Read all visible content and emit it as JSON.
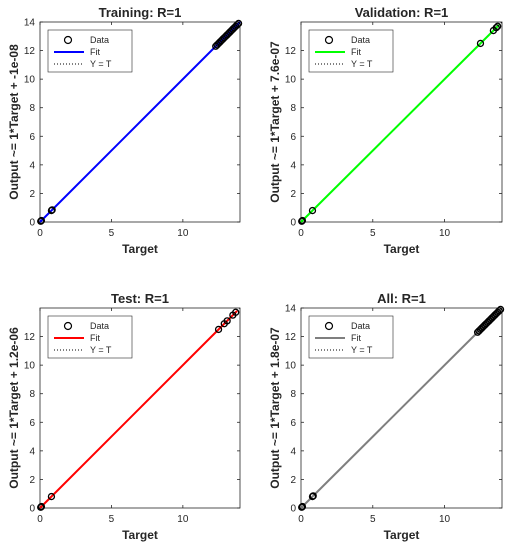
{
  "chart_data": [
    {
      "type": "scatter",
      "title": "Training: R=1",
      "xlabel": "Target",
      "ylabel": "Output ~= 1*Target + -1e-08",
      "xlim": [
        0,
        14
      ],
      "ylim": [
        0,
        14
      ],
      "xticks": [
        0,
        5,
        10
      ],
      "yticks": [
        0,
        2,
        4,
        6,
        8,
        10,
        12,
        14
      ],
      "fit_color": "#0000FF",
      "marker_color": "#000000",
      "fit": {
        "x": [
          0,
          14
        ],
        "y": [
          0,
          14
        ]
      },
      "identity": {
        "x": [
          0,
          14
        ],
        "y": [
          0,
          14
        ]
      },
      "data": {
        "x": [
          0.05,
          0.1,
          0.8,
          0.85,
          12.3,
          12.4,
          12.5,
          12.6,
          12.7,
          12.8,
          12.9,
          13.0,
          13.1,
          13.2,
          13.3,
          13.4,
          13.5,
          13.6,
          13.7,
          13.8,
          13.9
        ],
        "y": [
          0.05,
          0.1,
          0.8,
          0.85,
          12.3,
          12.4,
          12.5,
          12.6,
          12.7,
          12.8,
          12.9,
          13.0,
          13.1,
          13.2,
          13.3,
          13.4,
          13.5,
          13.6,
          13.7,
          13.8,
          13.9
        ]
      },
      "legend": {
        "position": "top-left",
        "entries": [
          "Data",
          "Fit",
          "Y = T"
        ]
      }
    },
    {
      "type": "scatter",
      "title": "Validation: R=1",
      "xlabel": "Target",
      "ylabel": "Output ~= 1*Target + 7.6e-07",
      "xlim": [
        0,
        14
      ],
      "ylim": [
        0,
        14
      ],
      "xticks": [
        0,
        5,
        10
      ],
      "yticks": [
        0,
        2,
        4,
        6,
        8,
        10,
        12
      ],
      "fit_color": "#00FF00",
      "marker_color": "#000000",
      "fit": {
        "x": [
          0,
          13.8
        ],
        "y": [
          0,
          13.8
        ]
      },
      "identity": {
        "x": [
          0,
          14
        ],
        "y": [
          0,
          14
        ]
      },
      "data": {
        "x": [
          0.05,
          0.1,
          0.8,
          12.5,
          13.4,
          13.6,
          13.7
        ],
        "y": [
          0.05,
          0.1,
          0.8,
          12.5,
          13.4,
          13.6,
          13.7
        ]
      },
      "legend": {
        "position": "top-left",
        "entries": [
          "Data",
          "Fit",
          "Y = T"
        ]
      }
    },
    {
      "type": "scatter",
      "title": "Test: R=1",
      "xlabel": "Target",
      "ylabel": "Output ~= 1*Target + 1.2e-06",
      "xlim": [
        0,
        14
      ],
      "ylim": [
        0,
        14
      ],
      "xticks": [
        0,
        5,
        10
      ],
      "yticks": [
        0,
        2,
        4,
        6,
        8,
        10,
        12
      ],
      "fit_color": "#FF0000",
      "marker_color": "#000000",
      "fit": {
        "x": [
          0,
          13.8
        ],
        "y": [
          0,
          13.8
        ]
      },
      "identity": {
        "x": [
          0,
          14
        ],
        "y": [
          0,
          14
        ]
      },
      "data": {
        "x": [
          0.05,
          0.1,
          0.8,
          12.5,
          12.9,
          13.1,
          13.5,
          13.7
        ],
        "y": [
          0.05,
          0.1,
          0.8,
          12.5,
          12.9,
          13.1,
          13.5,
          13.7
        ]
      },
      "legend": {
        "position": "top-left",
        "entries": [
          "Data",
          "Fit",
          "Y = T"
        ]
      }
    },
    {
      "type": "scatter",
      "title": "All: R=1",
      "xlabel": "Target",
      "ylabel": "Output ~= 1*Target + 1.8e-07",
      "xlim": [
        0,
        14
      ],
      "ylim": [
        0,
        14
      ],
      "xticks": [
        0,
        5,
        10
      ],
      "yticks": [
        0,
        2,
        4,
        6,
        8,
        10,
        12,
        14
      ],
      "fit_color": "#7F7F7F",
      "marker_color": "#000000",
      "fit": {
        "x": [
          0,
          14
        ],
        "y": [
          0,
          14
        ]
      },
      "identity": {
        "x": [
          0,
          14
        ],
        "y": [
          0,
          14
        ]
      },
      "data": {
        "x": [
          0.05,
          0.1,
          0.8,
          0.85,
          12.3,
          12.4,
          12.5,
          12.6,
          12.7,
          12.8,
          12.9,
          13.0,
          13.1,
          13.2,
          13.3,
          13.4,
          13.5,
          13.6,
          13.7,
          13.8,
          13.9
        ],
        "y": [
          0.05,
          0.1,
          0.8,
          0.85,
          12.3,
          12.4,
          12.5,
          12.6,
          12.7,
          12.8,
          12.9,
          13.0,
          13.1,
          13.2,
          13.3,
          13.4,
          13.5,
          13.6,
          13.7,
          13.8,
          13.9
        ]
      },
      "legend": {
        "position": "top-left",
        "entries": [
          "Data",
          "Fit",
          "Y = T"
        ]
      }
    }
  ]
}
